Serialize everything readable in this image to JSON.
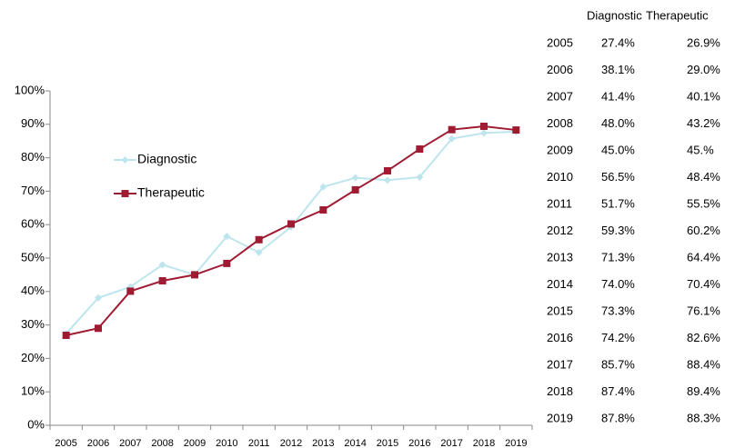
{
  "chart_data": {
    "type": "line",
    "categories": [
      "2005",
      "2006",
      "2007",
      "2008",
      "2009",
      "2010",
      "2011",
      "2012",
      "2013",
      "2014",
      "2015",
      "2016",
      "2017",
      "2018",
      "2019"
    ],
    "series": [
      {
        "name": "Diagnostic",
        "color": "#bde5ee",
        "marker": "diamond",
        "values": [
          27.4,
          38.1,
          41.4,
          48.0,
          45.0,
          56.5,
          51.7,
          59.3,
          71.3,
          74.0,
          73.3,
          74.2,
          85.7,
          87.4,
          87.8
        ],
        "value_labels": [
          "27.4%",
          "38.1%",
          "41.4%",
          "48.0%",
          "45.0%",
          "56.5%",
          "51.7%",
          "59.3%",
          "71.3%",
          "74.0%",
          "73.3%",
          "74.2%",
          "85.7%",
          "87.4%",
          "87.8%"
        ]
      },
      {
        "name": "Therapeutic",
        "color": "#9e1b32",
        "marker": "square",
        "values": [
          26.9,
          29.0,
          40.1,
          43.2,
          45,
          48.4,
          55.5,
          60.2,
          64.4,
          70.4,
          76.1,
          82.6,
          88.4,
          89.4,
          88.3
        ],
        "value_labels": [
          "26.9%",
          "29.0%",
          "40.1%",
          "43.2%",
          "45.%",
          "48.4%",
          "55.5%",
          "60.2%",
          "64.4%",
          "70.4%",
          "76.1%",
          "82.6%",
          "88.4%",
          "89.4%",
          "88.3%"
        ]
      }
    ],
    "ylim": [
      0,
      100
    ],
    "yticks": [
      {
        "value": 0,
        "label": "0%"
      },
      {
        "value": 10,
        "label": "10%"
      },
      {
        "value": 20,
        "label": "20%"
      },
      {
        "value": 30,
        "label": "30%"
      },
      {
        "value": 40,
        "label": "40%"
      },
      {
        "value": 50,
        "label": "50%"
      },
      {
        "value": 60,
        "label": "60%"
      },
      {
        "value": 70,
        "label": "70%"
      },
      {
        "value": 80,
        "label": "80%"
      },
      {
        "value": 90,
        "label": "90%"
      },
      {
        "value": 100,
        "label": "100%"
      }
    ],
    "grid": false
  }
}
